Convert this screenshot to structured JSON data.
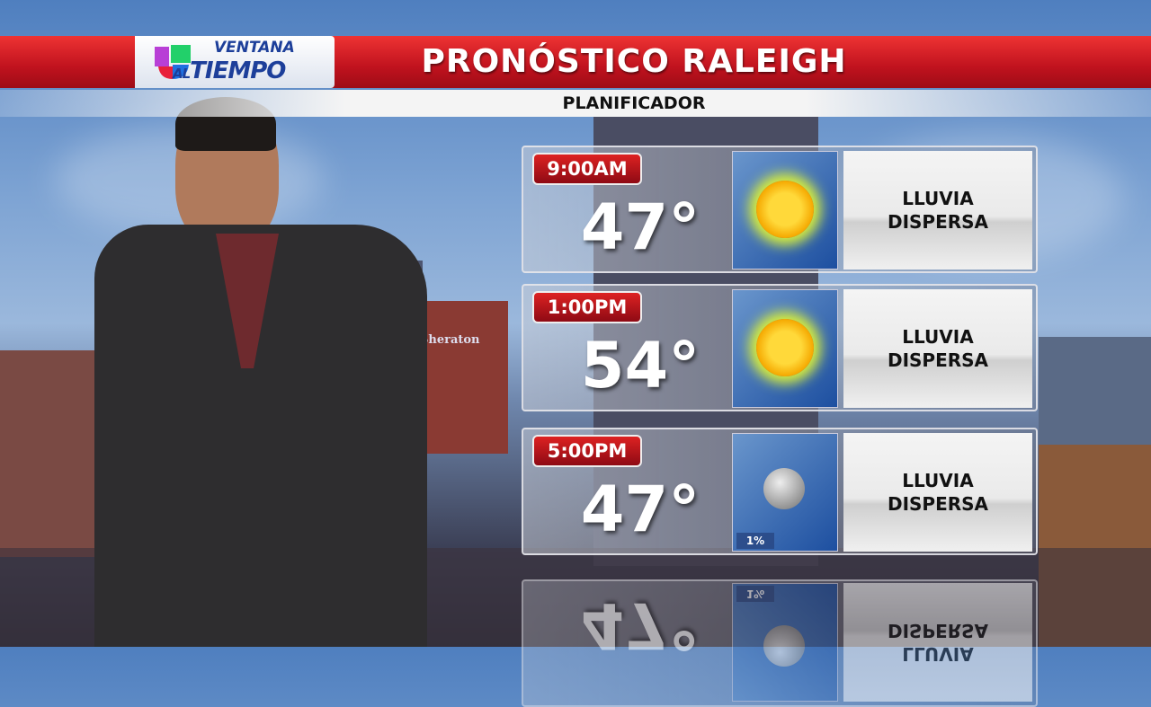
{
  "logo": {
    "line1": "VENTANA",
    "line2_small": "AL",
    "line2": "TIEMPO"
  },
  "header": {
    "title": "PRONÓSTICO RALEIGH",
    "subtitle": "PLANIFICADOR"
  },
  "background": {
    "sign_text": "Sheraton"
  },
  "forecast": [
    {
      "time": "9:00AM",
      "temp": "47°",
      "icon": "sun-icon",
      "desc1": "LLUVIA",
      "desc2": "DISPERSA"
    },
    {
      "time": "1:00PM",
      "temp": "54°",
      "icon": "sun-icon",
      "desc1": "LLUVIA",
      "desc2": "DISPERSA"
    },
    {
      "time": "5:00PM",
      "temp": "47°",
      "icon": "moon-icon",
      "precip": "1%",
      "desc1": "LLUVIA",
      "desc2": "DISPERSA"
    }
  ],
  "colors": {
    "header_red": "#c0121e",
    "brand_blue": "#1d3f9a",
    "icon_blue": "#1d4fa0"
  }
}
